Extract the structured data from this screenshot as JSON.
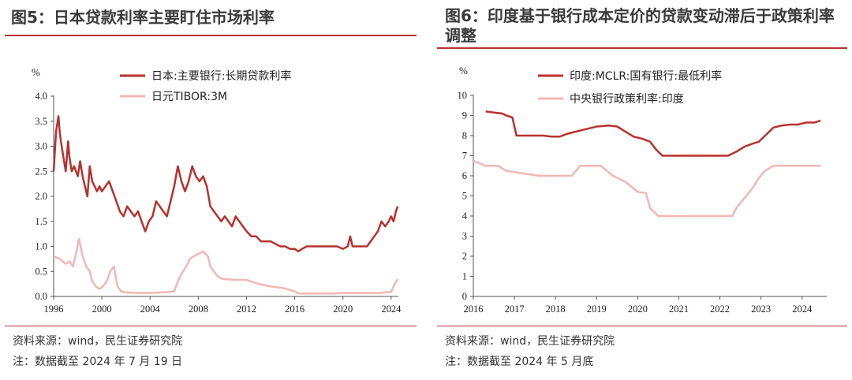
{
  "charts": [
    {
      "fig_title": "图5：日本贷款利率主要盯住市场利率",
      "source": "资料来源：wind，民生证券研究院",
      "note": "注：数据截至 2024 年 7 月 19 日",
      "unit": "%",
      "colors": {
        "series0": "#b8312f",
        "series1": "#f2b7b5"
      },
      "chart_data": {
        "type": "line",
        "ylim": [
          0,
          4.0
        ],
        "yticks": [
          "0.0",
          "0.5",
          "1.0",
          "1.5",
          "2.0",
          "2.5",
          "3.0",
          "3.5",
          "4.0"
        ],
        "xlim": [
          1996,
          2024.6
        ],
        "xticks": [
          "1996",
          "2000",
          "2004",
          "2008",
          "2012",
          "2016",
          "2020",
          "2024"
        ],
        "legend_position": "top",
        "series": [
          {
            "name": "日本:主要银行:长期贷款利率",
            "x": [
              1996.0,
              1996.2,
              1996.4,
              1996.5,
              1996.6,
              1996.8,
              1997.0,
              1997.2,
              1997.3,
              1997.5,
              1997.7,
              1998.0,
              1998.2,
              1998.4,
              1998.6,
              1998.8,
              1999.0,
              1999.2,
              1999.4,
              1999.6,
              1999.8,
              2000.0,
              2000.3,
              2000.6,
              2000.9,
              2001.2,
              2001.5,
              2001.8,
              2002.1,
              2002.4,
              2002.7,
              2003.0,
              2003.3,
              2003.6,
              2003.9,
              2004.2,
              2004.5,
              2004.8,
              2005.1,
              2005.4,
              2005.7,
              2006.0,
              2006.3,
              2006.6,
              2006.9,
              2007.2,
              2007.5,
              2007.8,
              2008.1,
              2008.4,
              2008.7,
              2009.0,
              2009.3,
              2009.6,
              2009.9,
              2010.2,
              2010.5,
              2010.8,
              2011.1,
              2011.4,
              2011.7,
              2012.0,
              2012.4,
              2012.8,
              2013.2,
              2013.6,
              2014.0,
              2014.4,
              2014.8,
              2015.2,
              2015.6,
              2016.0,
              2016.3,
              2016.6,
              2017.0,
              2017.5,
              2018.0,
              2018.5,
              2019.0,
              2019.5,
              2020.0,
              2020.4,
              2020.6,
              2020.8,
              2021.0,
              2021.5,
              2022.0,
              2022.3,
              2022.6,
              2022.9,
              2023.2,
              2023.5,
              2023.8,
              2024.0,
              2024.2,
              2024.4,
              2024.55
            ],
            "values": [
              2.5,
              3.3,
              3.6,
              3.3,
              3.1,
              2.8,
              2.5,
              3.1,
              2.8,
              2.5,
              2.6,
              2.4,
              2.7,
              2.4,
              2.2,
              2.0,
              2.6,
              2.3,
              2.2,
              2.1,
              2.2,
              2.1,
              2.2,
              2.3,
              2.1,
              1.9,
              1.7,
              1.6,
              1.8,
              1.7,
              1.6,
              1.7,
              1.5,
              1.3,
              1.5,
              1.6,
              1.9,
              1.8,
              1.7,
              1.6,
              1.9,
              2.2,
              2.6,
              2.3,
              2.1,
              2.3,
              2.6,
              2.4,
              2.3,
              2.4,
              2.2,
              1.8,
              1.7,
              1.6,
              1.5,
              1.6,
              1.5,
              1.4,
              1.6,
              1.5,
              1.4,
              1.3,
              1.2,
              1.2,
              1.1,
              1.1,
              1.1,
              1.05,
              1.0,
              1.0,
              0.95,
              0.95,
              0.9,
              0.95,
              1.0,
              1.0,
              1.0,
              1.0,
              1.0,
              1.0,
              0.95,
              1.0,
              1.2,
              1.0,
              1.0,
              1.0,
              1.0,
              1.1,
              1.2,
              1.3,
              1.5,
              1.4,
              1.5,
              1.6,
              1.5,
              1.7,
              1.8
            ]
          },
          {
            "name": "日元TIBOR:3M",
            "x": [
              1996.0,
              1996.5,
              1997.0,
              1997.3,
              1997.6,
              1997.9,
              1998.1,
              1998.4,
              1998.7,
              1999.0,
              1999.2,
              1999.5,
              1999.8,
              2000.1,
              2000.4,
              2000.7,
              2001.0,
              2001.3,
              2001.6,
              2002.0,
              2003.0,
              2004.0,
              2005.0,
              2006.0,
              2006.3,
              2006.6,
              2007.0,
              2007.3,
              2007.6,
              2008.0,
              2008.4,
              2008.8,
              2009.0,
              2009.3,
              2009.6,
              2010.0,
              2011.0,
              2012.0,
              2013.0,
              2014.0,
              2015.0,
              2016.0,
              2016.3,
              2017.0,
              2018.0,
              2019.0,
              2020.0,
              2021.0,
              2022.0,
              2023.0,
              2023.5,
              2024.0,
              2024.3,
              2024.55
            ],
            "values": [
              0.8,
              0.75,
              0.65,
              0.7,
              0.6,
              0.9,
              1.15,
              0.8,
              0.6,
              0.5,
              0.3,
              0.2,
              0.15,
              0.2,
              0.3,
              0.5,
              0.6,
              0.2,
              0.1,
              0.08,
              0.07,
              0.07,
              0.08,
              0.1,
              0.3,
              0.45,
              0.6,
              0.75,
              0.8,
              0.85,
              0.9,
              0.8,
              0.6,
              0.5,
              0.4,
              0.35,
              0.33,
              0.33,
              0.25,
              0.2,
              0.17,
              0.1,
              0.06,
              0.06,
              0.06,
              0.06,
              0.07,
              0.07,
              0.07,
              0.07,
              0.08,
              0.09,
              0.25,
              0.35
            ]
          }
        ]
      }
    },
    {
      "fig_title": "图6：印度基于银行成本定价的贷款变动滞后于政策利率调整",
      "source": "资料来源：wind，民生证券研究院",
      "note": "注：数据截至 2024 年 5 月底",
      "unit": "%",
      "colors": {
        "series0": "#b8312f",
        "series1": "#f2b7b5"
      },
      "chart_data": {
        "type": "line",
        "ylim": [
          0,
          10
        ],
        "yticks": [
          "0",
          "1",
          "2",
          "3",
          "4",
          "5",
          "6",
          "7",
          "8",
          "9",
          "10"
        ],
        "xlim": [
          2016,
          2024.6
        ],
        "xticks": [
          "2016",
          "2017",
          "2018",
          "2019",
          "2020",
          "2021",
          "2022",
          "2023",
          "2024"
        ],
        "legend_position": "top",
        "series": [
          {
            "name": "印度:MCLR:国有银行:最低利率",
            "x": [
              2016.3,
              2016.5,
              2016.7,
              2016.8,
              2016.95,
              2017.05,
              2017.4,
              2017.7,
              2017.9,
              2018.1,
              2018.3,
              2018.5,
              2018.7,
              2018.9,
              2019.0,
              2019.3,
              2019.5,
              2019.7,
              2019.9,
              2020.1,
              2020.3,
              2020.45,
              2020.6,
              2020.8,
              2021.0,
              2021.5,
              2022.0,
              2022.2,
              2022.4,
              2022.6,
              2022.8,
              2022.95,
              2023.1,
              2023.3,
              2023.5,
              2023.7,
              2023.9,
              2024.1,
              2024.3,
              2024.45
            ],
            "values": [
              9.2,
              9.15,
              9.1,
              9.0,
              8.9,
              8.0,
              8.0,
              8.0,
              7.95,
              7.95,
              8.1,
              8.2,
              8.3,
              8.4,
              8.45,
              8.5,
              8.45,
              8.2,
              7.95,
              7.85,
              7.7,
              7.3,
              7.0,
              7.0,
              7.0,
              7.0,
              7.0,
              7.0,
              7.2,
              7.45,
              7.6,
              7.7,
              8.0,
              8.4,
              8.5,
              8.55,
              8.55,
              8.65,
              8.65,
              8.75
            ]
          },
          {
            "name": "中央银行政策利率:印度",
            "x": [
              2016.0,
              2016.3,
              2016.6,
              2016.8,
              2017.6,
              2017.9,
              2018.4,
              2018.6,
              2019.1,
              2019.4,
              2019.7,
              2020.0,
              2020.2,
              2020.3,
              2020.5,
              2020.6,
              2021.5,
              2022.3,
              2022.4,
              2022.6,
              2022.8,
              2022.95,
              2023.1,
              2023.3,
              2024.45
            ],
            "values": [
              6.75,
              6.5,
              6.5,
              6.25,
              6.0,
              6.0,
              6.0,
              6.5,
              6.5,
              6.0,
              5.7,
              5.2,
              5.15,
              4.4,
              4.0,
              4.0,
              4.0,
              4.0,
              4.4,
              4.9,
              5.4,
              5.9,
              6.25,
              6.5,
              6.5
            ]
          }
        ]
      }
    }
  ]
}
